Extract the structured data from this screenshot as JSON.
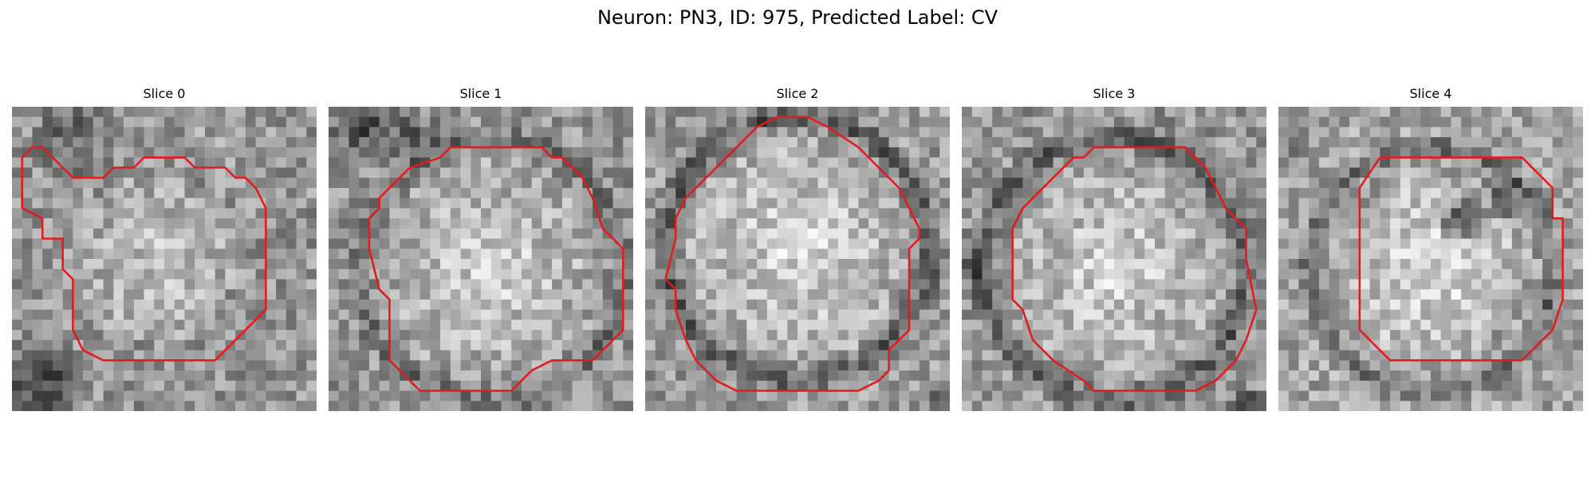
{
  "title": "Neuron: PN3, ID: 975, Predicted Label: CV",
  "panels": [
    {
      "label": "Slice 0"
    },
    {
      "label": "Slice 1"
    },
    {
      "label": "Slice 2"
    },
    {
      "label": "Slice 3"
    },
    {
      "label": "Slice 4"
    }
  ],
  "outline_color": "#e41a1c"
}
